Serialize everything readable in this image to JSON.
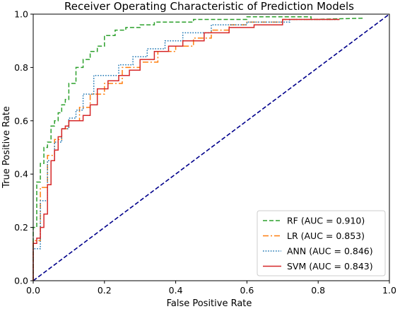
{
  "chart_data": {
    "type": "line",
    "title": "Receiver Operating Characteristic of Prediction Models",
    "xlabel": "False Positive Rate",
    "ylabel": "True Positive Rate",
    "xlim": [
      0.0,
      1.0
    ],
    "ylim": [
      0.0,
      1.0
    ],
    "xticks": [
      "0.0",
      "0.2",
      "0.4",
      "0.6",
      "0.8",
      "1.0"
    ],
    "yticks": [
      "0.0",
      "0.2",
      "0.4",
      "0.6",
      "0.8",
      "1.0"
    ],
    "grid": false,
    "legend_position": "lower-right",
    "series": [
      {
        "name": "RF (AUC = 0.910)",
        "color": "#2ca02c",
        "style": "dashed",
        "x": [
          0.0,
          0.0,
          0.01,
          0.01,
          0.02,
          0.02,
          0.03,
          0.03,
          0.04,
          0.04,
          0.05,
          0.05,
          0.06,
          0.06,
          0.07,
          0.07,
          0.08,
          0.08,
          0.09,
          0.09,
          0.1,
          0.1,
          0.12,
          0.12,
          0.14,
          0.14,
          0.16,
          0.16,
          0.18,
          0.18,
          0.2,
          0.2,
          0.23,
          0.23,
          0.26,
          0.26,
          0.3,
          0.3,
          0.34,
          0.34,
          0.45,
          0.45,
          0.6,
          0.6,
          0.78,
          0.78,
          0.93
        ],
        "y": [
          0.0,
          0.2,
          0.2,
          0.37,
          0.37,
          0.44,
          0.44,
          0.5,
          0.5,
          0.52,
          0.52,
          0.58,
          0.58,
          0.6,
          0.6,
          0.63,
          0.63,
          0.66,
          0.66,
          0.68,
          0.68,
          0.74,
          0.74,
          0.8,
          0.8,
          0.83,
          0.83,
          0.86,
          0.86,
          0.88,
          0.88,
          0.92,
          0.92,
          0.94,
          0.94,
          0.95,
          0.95,
          0.96,
          0.96,
          0.97,
          0.97,
          0.98,
          0.98,
          0.99,
          0.99,
          0.98,
          0.985
        ]
      },
      {
        "name": "LR (AUC = 0.853)",
        "color": "#ff7f0e",
        "style": "dashdot",
        "x": [
          0.0,
          0.0,
          0.02,
          0.02,
          0.04,
          0.04,
          0.06,
          0.06,
          0.08,
          0.08,
          0.1,
          0.1,
          0.13,
          0.13,
          0.16,
          0.16,
          0.2,
          0.2,
          0.25,
          0.25,
          0.3,
          0.3,
          0.35,
          0.35,
          0.4,
          0.4,
          0.45,
          0.45,
          0.5,
          0.5,
          0.55,
          0.55,
          0.6,
          0.6,
          0.7,
          0.7,
          0.86
        ],
        "y": [
          0.0,
          0.15,
          0.15,
          0.35,
          0.35,
          0.47,
          0.47,
          0.53,
          0.53,
          0.57,
          0.57,
          0.6,
          0.6,
          0.65,
          0.65,
          0.7,
          0.7,
          0.74,
          0.74,
          0.8,
          0.8,
          0.82,
          0.82,
          0.86,
          0.86,
          0.88,
          0.88,
          0.91,
          0.91,
          0.94,
          0.94,
          0.96,
          0.96,
          0.97,
          0.97,
          0.98,
          0.98
        ]
      },
      {
        "name": "ANN (AUC = 0.846)",
        "color": "#1f77b4",
        "style": "dotted",
        "x": [
          0.0,
          0.0,
          0.02,
          0.02,
          0.04,
          0.04,
          0.06,
          0.06,
          0.08,
          0.08,
          0.1,
          0.1,
          0.12,
          0.12,
          0.14,
          0.14,
          0.17,
          0.17,
          0.2,
          0.2,
          0.24,
          0.24,
          0.28,
          0.28,
          0.32,
          0.32,
          0.37,
          0.37,
          0.42,
          0.42,
          0.5,
          0.5,
          0.6,
          0.6,
          0.72,
          0.72,
          0.82,
          0.82,
          0.86
        ],
        "y": [
          0.0,
          0.12,
          0.12,
          0.3,
          0.3,
          0.45,
          0.45,
          0.52,
          0.52,
          0.57,
          0.57,
          0.61,
          0.61,
          0.64,
          0.64,
          0.7,
          0.7,
          0.77,
          0.77,
          0.77,
          0.77,
          0.81,
          0.81,
          0.84,
          0.84,
          0.87,
          0.87,
          0.9,
          0.9,
          0.93,
          0.93,
          0.96,
          0.96,
          0.97,
          0.97,
          0.98,
          0.98,
          0.98,
          0.98
        ]
      },
      {
        "name": "SVM (AUC = 0.843)",
        "color": "#d62728",
        "style": "solid",
        "x": [
          0.0,
          0.0,
          0.01,
          0.01,
          0.02,
          0.02,
          0.03,
          0.03,
          0.04,
          0.04,
          0.05,
          0.05,
          0.06,
          0.06,
          0.07,
          0.07,
          0.08,
          0.08,
          0.09,
          0.09,
          0.1,
          0.1,
          0.12,
          0.12,
          0.14,
          0.14,
          0.16,
          0.16,
          0.18,
          0.18,
          0.21,
          0.21,
          0.24,
          0.24,
          0.27,
          0.27,
          0.3,
          0.3,
          0.34,
          0.34,
          0.38,
          0.38,
          0.42,
          0.42,
          0.48,
          0.48,
          0.55,
          0.55,
          0.62,
          0.62,
          0.7,
          0.7,
          0.86
        ],
        "y": [
          0.0,
          0.14,
          0.14,
          0.16,
          0.16,
          0.2,
          0.2,
          0.25,
          0.25,
          0.36,
          0.36,
          0.45,
          0.45,
          0.49,
          0.49,
          0.54,
          0.54,
          0.57,
          0.57,
          0.58,
          0.58,
          0.6,
          0.6,
          0.6,
          0.6,
          0.62,
          0.62,
          0.66,
          0.66,
          0.72,
          0.72,
          0.75,
          0.75,
          0.77,
          0.77,
          0.79,
          0.79,
          0.83,
          0.83,
          0.86,
          0.86,
          0.88,
          0.88,
          0.9,
          0.9,
          0.93,
          0.93,
          0.95,
          0.95,
          0.96,
          0.96,
          0.98,
          0.98
        ]
      }
    ],
    "diagonal": {
      "color": "#00008b",
      "style": "dashed",
      "x": [
        0.0,
        1.0
      ],
      "y": [
        0.0,
        1.0
      ]
    }
  }
}
